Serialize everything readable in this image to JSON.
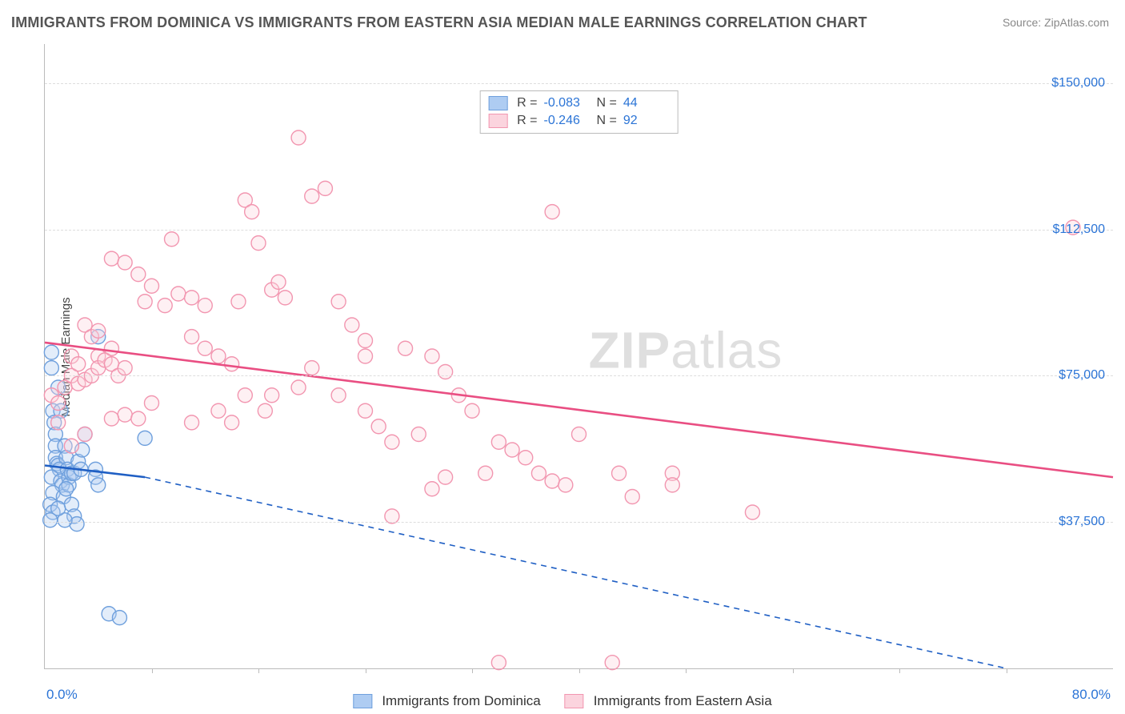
{
  "title": "IMMIGRANTS FROM DOMINICA VS IMMIGRANTS FROM EASTERN ASIA MEDIAN MALE EARNINGS CORRELATION CHART",
  "source_label": "Source: ZipAtlas.com",
  "watermark_zip": "ZIP",
  "watermark_atlas": "atlas",
  "ylabel": "Median Male Earnings",
  "chart": {
    "type": "scatter",
    "xlim": [
      0,
      80
    ],
    "ylim": [
      0,
      160000
    ],
    "x_tick_step_pct": 8,
    "y_gridlines": [
      37500,
      75000,
      112500,
      150000
    ],
    "y_tick_labels": [
      "$37,500",
      "$75,000",
      "$112,500",
      "$150,000"
    ],
    "x_min_label": "0.0%",
    "x_max_label": "80.0%",
    "background_color": "#ffffff",
    "grid_color": "#dddddd",
    "axis_color": "#bbbbbb",
    "marker_radius": 9,
    "marker_fill_opacity": 0.35,
    "marker_stroke_width": 1.4,
    "trendline_width": 2.6
  },
  "series": [
    {
      "id": "dominica",
      "label": "Immigrants from Dominica",
      "color_fill": "#aeccf2",
      "color_stroke": "#6fa0dd",
      "trend_color": "#1f5fc4",
      "R": "-0.083",
      "N": "44",
      "trend": {
        "x1_pct": 0,
        "y1_val": 52000,
        "x2_pct": 7.5,
        "y2_val": 49000,
        "solid_until_pct": 7.5,
        "dash_x2_pct": 72,
        "dash_y2_val": 0
      },
      "points_pct_val": [
        [
          0.5,
          81000
        ],
        [
          0.5,
          77000
        ],
        [
          0.6,
          66000
        ],
        [
          0.7,
          63000
        ],
        [
          0.8,
          60000
        ],
        [
          0.8,
          57000
        ],
        [
          0.8,
          54000
        ],
        [
          0.9,
          52500
        ],
        [
          1.0,
          52000
        ],
        [
          1.1,
          51000
        ],
        [
          0.5,
          49000
        ],
        [
          1.2,
          48000
        ],
        [
          1.3,
          47000
        ],
        [
          0.6,
          45000
        ],
        [
          1.4,
          44000
        ],
        [
          1.5,
          57000
        ],
        [
          1.6,
          54000
        ],
        [
          1.7,
          51000
        ],
        [
          1.8,
          49000
        ],
        [
          1.8,
          47000
        ],
        [
          1.2,
          66000
        ],
        [
          1.0,
          72000
        ],
        [
          0.4,
          42000
        ],
        [
          0.6,
          40000
        ],
        [
          0.4,
          38000
        ],
        [
          2.0,
          50000
        ],
        [
          2.2,
          50000
        ],
        [
          2.5,
          53000
        ],
        [
          2.7,
          51000
        ],
        [
          2.8,
          56000
        ],
        [
          3.0,
          60000
        ],
        [
          3.8,
          51000
        ],
        [
          3.8,
          49000
        ],
        [
          4.0,
          47000
        ],
        [
          2.0,
          42000
        ],
        [
          2.2,
          39000
        ],
        [
          2.4,
          37000
        ],
        [
          7.5,
          59000
        ],
        [
          4.0,
          85000
        ],
        [
          4.8,
          14000
        ],
        [
          5.6,
          13000
        ],
        [
          1.5,
          38000
        ],
        [
          1.6,
          46000
        ],
        [
          1.0,
          41000
        ]
      ]
    },
    {
      "id": "eastern_asia",
      "label": "Immigrants from Eastern Asia",
      "color_fill": "#fbd4de",
      "color_stroke": "#f296b0",
      "trend_color": "#e94e82",
      "R": "-0.246",
      "N": "92",
      "trend": {
        "x1_pct": 0,
        "y1_val": 83500,
        "x2_pct": 80,
        "y2_val": 49000
      },
      "points_pct_val": [
        [
          0.5,
          70000
        ],
        [
          1.0,
          68000
        ],
        [
          1.0,
          63000
        ],
        [
          1.5,
          72000
        ],
        [
          2.0,
          80000
        ],
        [
          2.0,
          75000
        ],
        [
          2.5,
          78000
        ],
        [
          2.5,
          73000
        ],
        [
          3.0,
          74000
        ],
        [
          3.5,
          75000
        ],
        [
          3.0,
          88000
        ],
        [
          3.5,
          85000
        ],
        [
          4.0,
          80000
        ],
        [
          4.0,
          77000
        ],
        [
          4.0,
          86500
        ],
        [
          4.5,
          79000
        ],
        [
          5.0,
          82000
        ],
        [
          5.0,
          78000
        ],
        [
          5.5,
          75000
        ],
        [
          6.0,
          77000
        ],
        [
          5.0,
          105000
        ],
        [
          6.0,
          104000
        ],
        [
          7.0,
          101000
        ],
        [
          7.5,
          94000
        ],
        [
          8.0,
          98000
        ],
        [
          9.0,
          93000
        ],
        [
          9.5,
          110000
        ],
        [
          10.0,
          96000
        ],
        [
          11.0,
          95000
        ],
        [
          12.0,
          93000
        ],
        [
          11.0,
          85000
        ],
        [
          12.0,
          82000
        ],
        [
          13.0,
          80000
        ],
        [
          14.0,
          78000
        ],
        [
          14.5,
          94000
        ],
        [
          15.0,
          120000
        ],
        [
          15.5,
          117000
        ],
        [
          16.0,
          109000
        ],
        [
          17.0,
          97000
        ],
        [
          17.5,
          99000
        ],
        [
          18.0,
          95000
        ],
        [
          19.0,
          136000
        ],
        [
          20.0,
          121000
        ],
        [
          21.0,
          123000
        ],
        [
          22.0,
          94000
        ],
        [
          23.0,
          88000
        ],
        [
          24.0,
          84000
        ],
        [
          24.0,
          80000
        ],
        [
          15.0,
          70000
        ],
        [
          16.5,
          66000
        ],
        [
          13.0,
          66000
        ],
        [
          14.0,
          63000
        ],
        [
          17.0,
          70000
        ],
        [
          19.0,
          72000
        ],
        [
          20.0,
          77000
        ],
        [
          22.0,
          70000
        ],
        [
          24.0,
          66000
        ],
        [
          25.0,
          62000
        ],
        [
          26.0,
          58000
        ],
        [
          28.0,
          60000
        ],
        [
          27.0,
          82000
        ],
        [
          29.0,
          80000
        ],
        [
          30.0,
          76000
        ],
        [
          31.0,
          70000
        ],
        [
          32.0,
          66000
        ],
        [
          33.0,
          50000
        ],
        [
          34.0,
          58000
        ],
        [
          35.0,
          56000
        ],
        [
          36.0,
          54000
        ],
        [
          37.0,
          50000
        ],
        [
          38.0,
          48000
        ],
        [
          39.0,
          47000
        ],
        [
          38.0,
          117000
        ],
        [
          26.0,
          39000
        ],
        [
          29.0,
          46000
        ],
        [
          30.0,
          49000
        ],
        [
          11.0,
          63000
        ],
        [
          8.0,
          68000
        ],
        [
          6.0,
          65000
        ],
        [
          7.0,
          64000
        ],
        [
          40.0,
          60000
        ],
        [
          43.0,
          50000
        ],
        [
          44.0,
          44000
        ],
        [
          53.0,
          40000
        ],
        [
          47.0,
          50000
        ],
        [
          47.0,
          47000
        ],
        [
          34.0,
          1500
        ],
        [
          42.5,
          1500
        ],
        [
          77.0,
          113000
        ],
        [
          5.0,
          64000
        ],
        [
          2.0,
          57000
        ],
        [
          3.0,
          60000
        ]
      ]
    }
  ],
  "legend_top_rows": [
    {
      "series": 0,
      "R_label": "R =",
      "N_label": "N ="
    },
    {
      "series": 1,
      "R_label": "R =",
      "N_label": "N ="
    }
  ]
}
